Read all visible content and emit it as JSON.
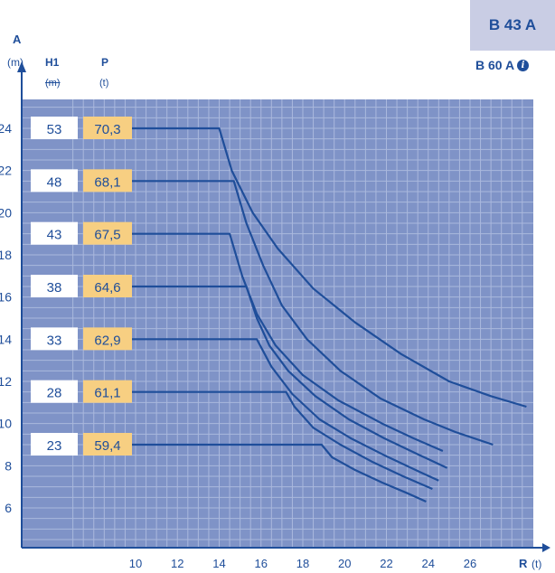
{
  "header": {
    "axis_a_label": "A",
    "axis_a_unit": "(m)",
    "col_h1_label": "H1",
    "col_h1_unit": "(m)",
    "col_p_label": "P",
    "col_p_unit": "(t)",
    "model": "B 43 A",
    "model_alt": "B 60 A",
    "info_icon": "info-icon"
  },
  "colors": {
    "plot_bg": "#7f93c7",
    "grid": "#aab8dd",
    "curve": "#1f4e9a",
    "text": "#1f4e9a",
    "label_p_bg": "#f7cf82",
    "badge_bg": "#c9cde4"
  },
  "chart_data": {
    "type": "line",
    "xlabel": "R",
    "xunit": "(t)",
    "ylabel": "A",
    "yunit": "(m)",
    "xlim": [
      6.5,
      29
    ],
    "ylim": [
      4.3,
      25.2
    ],
    "x_ticks": [
      "10",
      "12",
      "14",
      "16",
      "18",
      "20",
      "22",
      "24",
      "26"
    ],
    "y_ticks": [
      "24",
      "22",
      "20",
      "18",
      "16",
      "14",
      "12",
      "10",
      "8",
      "6"
    ],
    "grid": true,
    "series": [
      {
        "h1": "53",
        "p": "70,3",
        "points": [
          [
            14,
            24
          ],
          [
            14.6,
            22
          ],
          [
            15.6,
            20
          ],
          [
            16.8,
            18.3
          ],
          [
            18.5,
            16.4
          ],
          [
            20.5,
            14.8
          ],
          [
            22.7,
            13.3
          ],
          [
            25,
            12
          ],
          [
            27,
            11.3
          ],
          [
            28.7,
            10.8
          ]
        ]
      },
      {
        "h1": "48",
        "p": "68,1",
        "points": [
          [
            14.7,
            21.5
          ],
          [
            15.3,
            19.5
          ],
          [
            16.1,
            17.5
          ],
          [
            17,
            15.6
          ],
          [
            18.2,
            14
          ],
          [
            19.8,
            12.5
          ],
          [
            21.7,
            11.2
          ],
          [
            23.8,
            10.2
          ],
          [
            25.3,
            9.6
          ],
          [
            27.1,
            9
          ]
        ]
      },
      {
        "h1": "43",
        "p": "67,5",
        "points": [
          [
            14.5,
            19
          ],
          [
            15.1,
            17
          ],
          [
            15.8,
            15.2
          ],
          [
            16.7,
            13.7
          ],
          [
            18,
            12.3
          ],
          [
            19.7,
            11.1
          ],
          [
            21.8,
            10
          ],
          [
            23.3,
            9.3
          ],
          [
            24.7,
            8.7
          ]
        ]
      },
      {
        "h1": "38",
        "p": "64,6",
        "points": [
          [
            15.3,
            16.5
          ],
          [
            15.8,
            15
          ],
          [
            16.4,
            13.7
          ],
          [
            17.3,
            12.5
          ],
          [
            18.6,
            11.3
          ],
          [
            20.2,
            10.2
          ],
          [
            21.9,
            9.3
          ],
          [
            23.6,
            8.5
          ],
          [
            24.9,
            7.9
          ]
        ]
      },
      {
        "h1": "33",
        "p": "62,9",
        "points": [
          [
            15.8,
            14
          ],
          [
            16.5,
            12.7
          ],
          [
            17.5,
            11.4
          ],
          [
            18.8,
            10.2
          ],
          [
            20.3,
            9.3
          ],
          [
            21.9,
            8.5
          ],
          [
            23.6,
            7.7
          ],
          [
            24.5,
            7.3
          ]
        ]
      },
      {
        "h1": "28",
        "p": "61,1",
        "points": [
          [
            17.2,
            11.5
          ],
          [
            17.6,
            10.8
          ],
          [
            18.5,
            9.8
          ],
          [
            19.8,
            9
          ],
          [
            21.3,
            8.2
          ],
          [
            22.8,
            7.5
          ],
          [
            24.2,
            6.9
          ]
        ]
      },
      {
        "h1": "23",
        "p": "59,4",
        "points": [
          [
            18.9,
            9
          ],
          [
            19.4,
            8.4
          ],
          [
            20.5,
            7.8
          ],
          [
            21.8,
            7.2
          ],
          [
            23,
            6.7
          ],
          [
            23.9,
            6.3
          ]
        ]
      }
    ]
  }
}
